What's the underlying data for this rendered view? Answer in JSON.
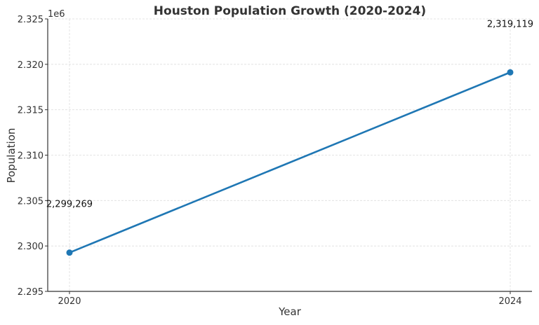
{
  "chart_data": {
    "type": "line",
    "title": "Houston Population Growth (2020-2024)",
    "xlabel": "Year",
    "ylabel": "Population",
    "y_offset_label": "1e6",
    "x": [
      2020,
      2024
    ],
    "x_tick_labels": [
      "2020",
      "2024"
    ],
    "series": [
      {
        "values": [
          2299269,
          2319119
        ],
        "color": "#1f77b4",
        "marker": "circle"
      }
    ],
    "data_labels": [
      "2,299,269",
      "2,319,119"
    ],
    "ylim": [
      2295000,
      2325000
    ],
    "y_ticks": [
      2295000,
      2300000,
      2305000,
      2310000,
      2315000,
      2320000,
      2325000
    ],
    "y_tick_labels": [
      "2.295",
      "2.300",
      "2.305",
      "2.310",
      "2.315",
      "2.320",
      "2.325"
    ],
    "grid": true,
    "grid_style": "dashed"
  }
}
